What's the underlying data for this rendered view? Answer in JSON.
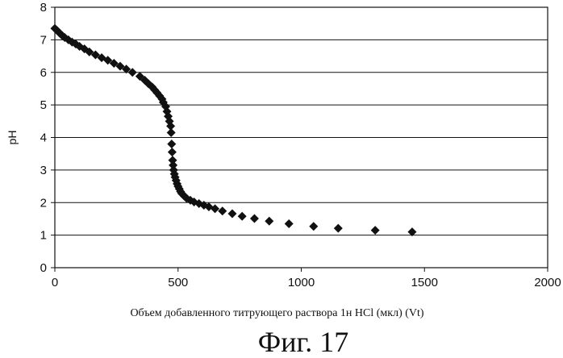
{
  "chart_data": {
    "type": "scatter",
    "title": "",
    "xlabel": "Объем добавленного титрующего раствора 1н HCl (мкл) (Vt)",
    "ylabel": "pH",
    "xlim": [
      0,
      2000
    ],
    "ylim": [
      0,
      8
    ],
    "xticks": [
      "0",
      "500",
      "1000",
      "1500",
      "2000"
    ],
    "yticks": [
      "0",
      "1",
      "2",
      "3",
      "4",
      "5",
      "6",
      "7",
      "8"
    ],
    "grid": "horizontal",
    "legend": "none",
    "marker": "diamond",
    "marker_color": "#111111",
    "x": [
      0,
      10,
      20,
      30,
      40,
      55,
      70,
      85,
      100,
      120,
      140,
      165,
      190,
      215,
      240,
      265,
      290,
      315,
      345,
      365,
      380,
      395,
      405,
      415,
      425,
      435,
      440,
      450,
      455,
      460,
      465,
      470,
      472,
      474,
      476,
      478,
      480,
      482,
      485,
      488,
      492,
      496,
      500,
      505,
      510,
      515,
      525,
      535,
      550,
      565,
      585,
      605,
      625,
      650,
      680,
      720,
      760,
      810,
      870,
      950,
      1050,
      1150,
      1300,
      1450
    ],
    "y": [
      7.35,
      7.28,
      7.2,
      7.13,
      7.07,
      7.0,
      6.93,
      6.87,
      6.8,
      6.72,
      6.63,
      6.54,
      6.45,
      6.37,
      6.28,
      6.19,
      6.1,
      6.0,
      5.88,
      5.76,
      5.65,
      5.55,
      5.46,
      5.37,
      5.28,
      5.18,
      5.08,
      4.95,
      4.8,
      4.65,
      4.5,
      4.35,
      4.15,
      3.8,
      3.55,
      3.3,
      3.15,
      3.0,
      2.88,
      2.78,
      2.68,
      2.58,
      2.5,
      2.42,
      2.34,
      2.28,
      2.2,
      2.13,
      2.07,
      2.02,
      1.97,
      1.92,
      1.87,
      1.81,
      1.74,
      1.66,
      1.58,
      1.51,
      1.43,
      1.35,
      1.27,
      1.21,
      1.15,
      1.1
    ]
  },
  "caption": "Фиг. 17"
}
